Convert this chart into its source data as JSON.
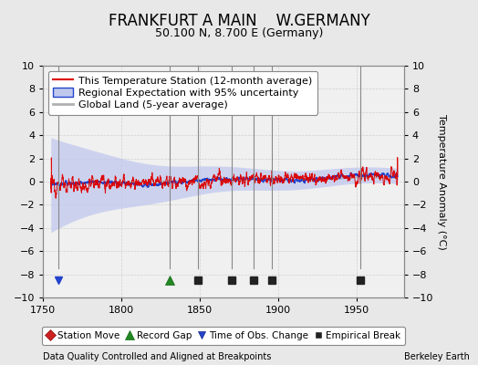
{
  "title": "FRANKFURT A MAIN    W.GERMANY",
  "subtitle": "50.100 N, 8.700 E (Germany)",
  "ylabel": "Temperature Anomaly (°C)",
  "xlim": [
    1750,
    1980
  ],
  "ylim": [
    -10,
    10
  ],
  "yticks": [
    -10,
    -8,
    -6,
    -4,
    -2,
    0,
    2,
    4,
    6,
    8,
    10
  ],
  "xticks": [
    1750,
    1800,
    1850,
    1900,
    1950
  ],
  "background_color": "#e8e8e8",
  "plot_bg_color": "#f0f0f0",
  "red_line_color": "#dd0000",
  "blue_line_color": "#2244cc",
  "blue_fill_color": "#c0c8ee",
  "gray_line_color": "#b0b0b0",
  "title_fontsize": 12,
  "subtitle_fontsize": 9,
  "legend_fontsize": 8,
  "axis_fontsize": 8,
  "ylabel_fontsize": 8,
  "data_start_year": 1755,
  "data_end_year": 1976,
  "markers": {
    "record_gap": [
      1831
    ],
    "empirical_break": [
      1849,
      1870,
      1884,
      1896,
      1952
    ],
    "time_obs_change": [
      1760
    ],
    "station_move": []
  },
  "vline_color": "#888888",
  "grid_color": "#d0d0d0",
  "footer_left": "Data Quality Controlled and Aligned at Breakpoints",
  "footer_right": "Berkeley Earth"
}
